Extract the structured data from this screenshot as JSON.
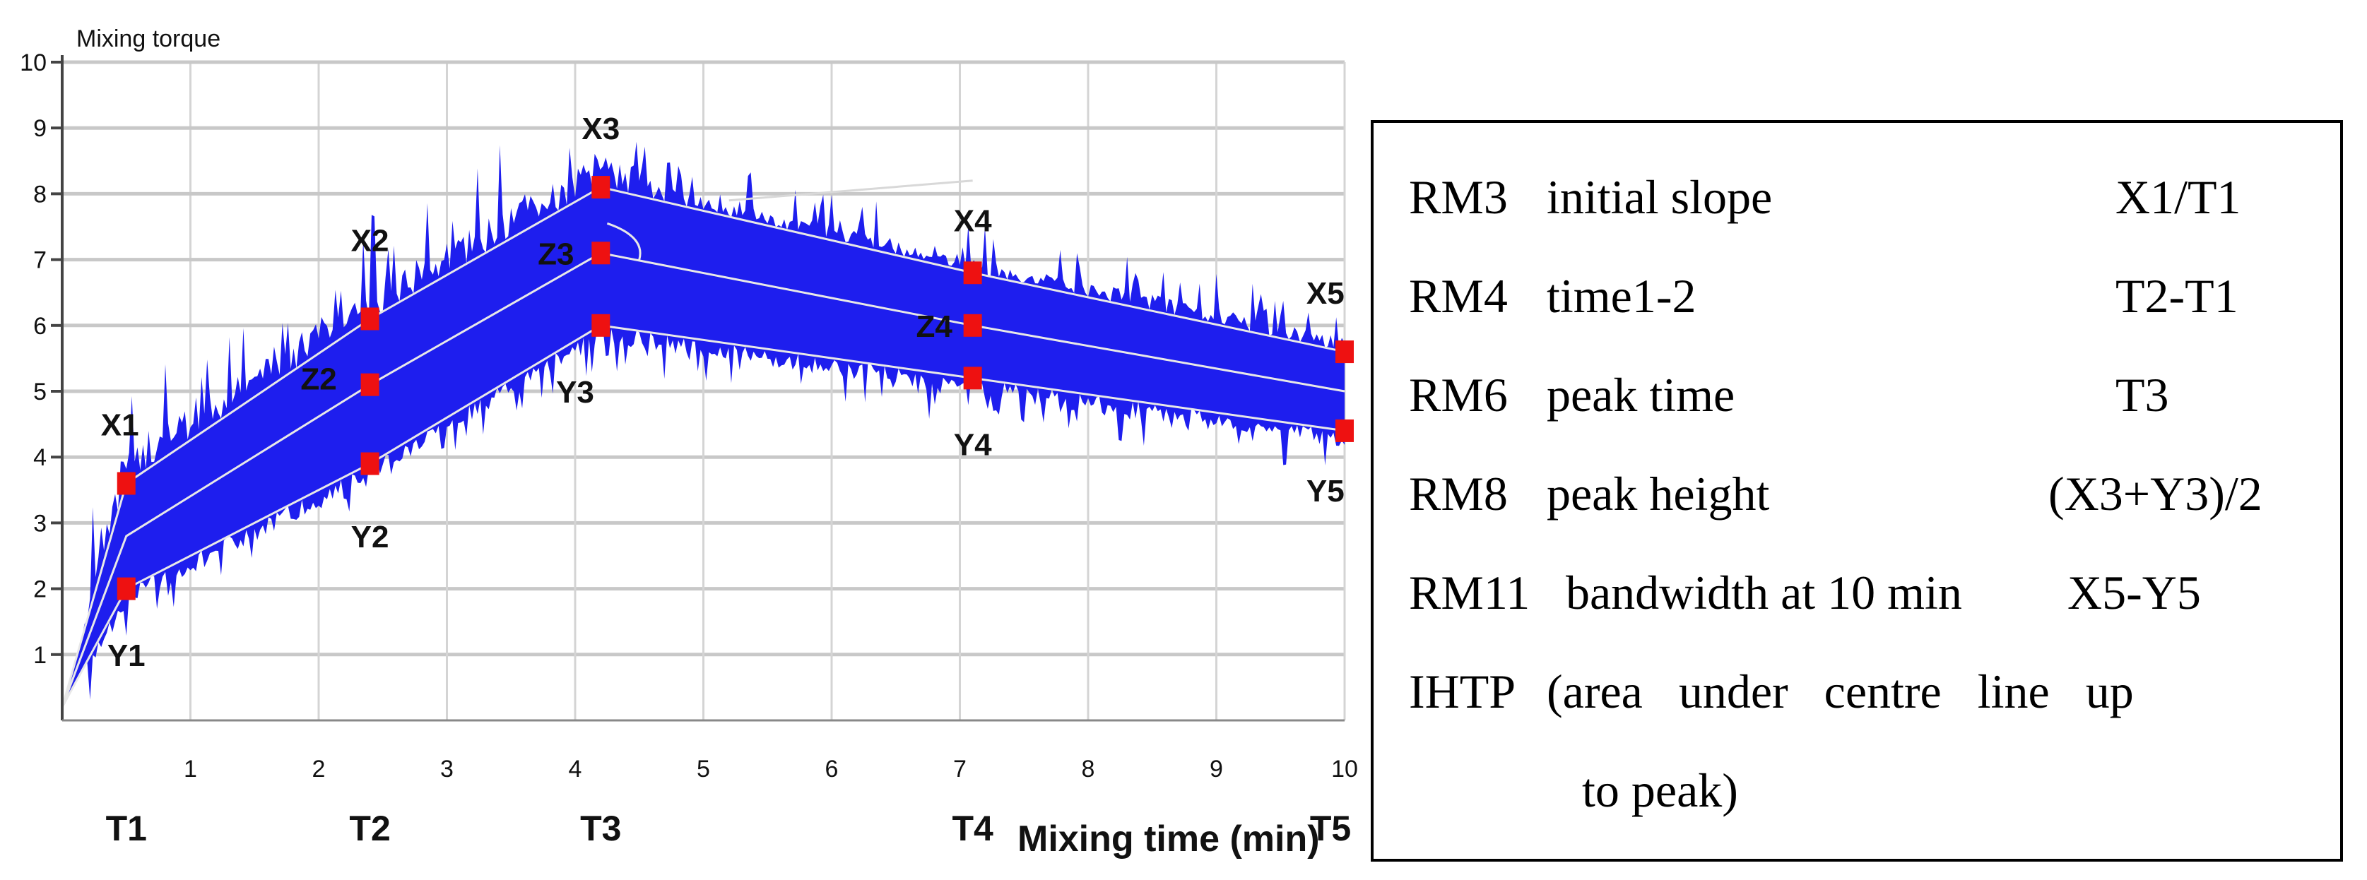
{
  "chart_data": {
    "type": "line",
    "title": "Mixing torque",
    "ylabel": "Mixing torque",
    "xlabel": "Mixing time (min)",
    "xlim": [
      0,
      10
    ],
    "ylim": [
      0,
      10
    ],
    "xticks": [
      "1",
      "2",
      "3",
      "4",
      "5",
      "6",
      "7",
      "8",
      "9",
      "10"
    ],
    "yticks": [
      "1",
      "2",
      "3",
      "4",
      "5",
      "6",
      "7",
      "8",
      "9",
      "10"
    ],
    "grid": true,
    "band_color": "#1e1eee",
    "marker_color": "#ee1111",
    "line_color": "#e8e8e8",
    "series": [
      {
        "name": "X (upper)",
        "x": [
          0,
          0.5,
          2.4,
          4.2,
          7.1,
          10
        ],
        "y": [
          0.2,
          3.6,
          6.1,
          8.1,
          6.8,
          5.6
        ]
      },
      {
        "name": "Z (centre)",
        "x": [
          0,
          0.5,
          2.4,
          4.2,
          7.1,
          10
        ],
        "y": [
          0.2,
          2.8,
          5.1,
          7.1,
          6.0,
          5.0
        ]
      },
      {
        "name": "Y (lower)",
        "x": [
          0,
          0.5,
          2.4,
          4.2,
          7.1,
          10
        ],
        "y": [
          0.2,
          2.0,
          3.9,
          6.0,
          5.2,
          4.4
        ]
      }
    ],
    "markers": [
      {
        "x": 0.5,
        "y": 3.6
      },
      {
        "x": 0.5,
        "y": 2.0
      },
      {
        "x": 2.4,
        "y": 6.1
      },
      {
        "x": 2.4,
        "y": 5.1
      },
      {
        "x": 2.4,
        "y": 3.9
      },
      {
        "x": 4.2,
        "y": 8.1
      },
      {
        "x": 4.2,
        "y": 7.1
      },
      {
        "x": 4.2,
        "y": 6.0
      },
      {
        "x": 7.1,
        "y": 6.8
      },
      {
        "x": 7.1,
        "y": 6.0
      },
      {
        "x": 7.1,
        "y": 5.2
      },
      {
        "x": 10,
        "y": 5.6
      },
      {
        "x": 10,
        "y": 4.4
      }
    ],
    "annotations": [
      {
        "text": "X1",
        "x": 0.45,
        "y": 4.5
      },
      {
        "text": "Y1",
        "x": 0.5,
        "y": 1.0
      },
      {
        "text": "X2",
        "x": 2.4,
        "y": 7.3
      },
      {
        "text": "Z2",
        "x": 2.0,
        "y": 5.2
      },
      {
        "text": "Y2",
        "x": 2.4,
        "y": 2.8
      },
      {
        "text": "X3",
        "x": 4.2,
        "y": 9.0
      },
      {
        "text": "Z3",
        "x": 3.85,
        "y": 7.1
      },
      {
        "text": "Y3",
        "x": 4.0,
        "y": 5.0
      },
      {
        "text": "X4",
        "x": 7.1,
        "y": 7.6
      },
      {
        "text": "Z4",
        "x": 6.8,
        "y": 6.0
      },
      {
        "text": "Y4",
        "x": 7.1,
        "y": 4.2
      },
      {
        "text": "X5",
        "x": 9.85,
        "y": 6.5
      },
      {
        "text": "Y5",
        "x": 9.85,
        "y": 3.5
      }
    ],
    "time_labels": [
      {
        "text": "T1",
        "x": 0.5
      },
      {
        "text": "T2",
        "x": 2.4
      },
      {
        "text": "T3",
        "x": 4.2
      },
      {
        "text": "T4",
        "x": 7.1
      },
      {
        "text": "T5",
        "x": 10
      }
    ]
  },
  "legend": [
    {
      "code": "RM3",
      "desc": "initial slope",
      "formula": "X1/T1"
    },
    {
      "code": "RM4",
      "desc": "time1-2",
      "formula": "T2-T1"
    },
    {
      "code": "RM6",
      "desc": "peak time",
      "formula": "T3"
    },
    {
      "code": "RM8",
      "desc": "peak height",
      "formula": "(X3+Y3)/2"
    },
    {
      "code": "RM11",
      "desc": "bandwidth at 10 min",
      "formula": "X5-Y5"
    },
    {
      "code": "IHTP",
      "desc_line1": "(area   under   centre   line   up",
      "desc_line2": "to peak)"
    }
  ]
}
